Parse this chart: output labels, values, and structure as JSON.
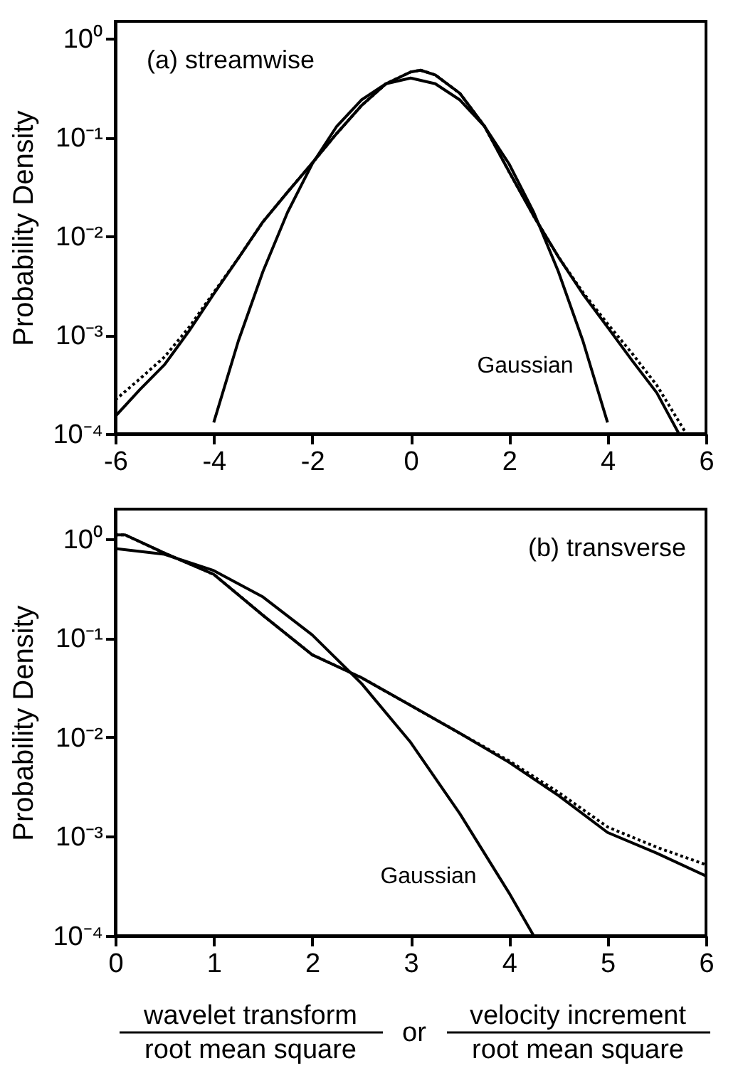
{
  "chart_data": [
    {
      "type": "line",
      "title": "(a)  streamwise",
      "ylabel": "Probability Density",
      "xlim": [
        -6,
        6
      ],
      "xticks": [
        -6,
        -4,
        -2,
        0,
        2,
        4,
        6
      ],
      "ylim": [
        0.0001,
        1.5
      ],
      "log": true,
      "yticks": [
        {
          "value": 0.0001,
          "label": "10⁻⁴"
        },
        {
          "value": 0.001,
          "label": "10⁻³"
        },
        {
          "value": 0.01,
          "label": "10⁻²"
        },
        {
          "value": 0.1,
          "label": "10⁻¹"
        },
        {
          "value": 1,
          "label": "10⁰"
        }
      ],
      "grid": false,
      "annotations": [
        "Gaussian"
      ],
      "series": [
        {
          "color": "#000000",
          "line_style": "solid",
          "x": [
            -6,
            -5.5,
            -5,
            -4.5,
            -4,
            -3.5,
            -3,
            -2.5,
            -2,
            -1.5,
            -1,
            -0.5,
            0,
            0.2,
            0.5,
            1,
            1.5,
            2,
            2.5,
            3,
            3.5,
            4,
            4.5,
            5,
            5.45
          ],
          "values": [
            0.00015,
            0.00028,
            0.0005,
            0.0011,
            0.0026,
            0.006,
            0.014,
            0.028,
            0.055,
            0.11,
            0.21,
            0.35,
            0.46,
            0.48,
            0.43,
            0.28,
            0.13,
            0.045,
            0.016,
            0.0062,
            0.0026,
            0.0012,
            0.00055,
            0.00026,
            0.0001
          ]
        },
        {
          "color": "#000000",
          "line_style": "dotted",
          "x": [
            -6,
            -5.5,
            -5,
            -4.5,
            -4,
            -3.5,
            -3,
            -2.5,
            -2,
            -1.5,
            -1,
            -0.5,
            0,
            0.2,
            0.5,
            1,
            1.5,
            2,
            2.5,
            3,
            3.5,
            4,
            4.5,
            5,
            5.6
          ],
          "values": [
            0.00022,
            0.00036,
            0.0006,
            0.0012,
            0.0027,
            0.006,
            0.014,
            0.028,
            0.055,
            0.11,
            0.21,
            0.35,
            0.46,
            0.48,
            0.43,
            0.28,
            0.13,
            0.045,
            0.016,
            0.0062,
            0.0027,
            0.0013,
            0.00065,
            0.00031,
            0.0001
          ]
        },
        {
          "color": "#000000",
          "line_style": "solid",
          "x": [
            -4,
            -3.5,
            -3,
            -2.5,
            -2,
            -1.5,
            -1,
            -0.5,
            0,
            0.5,
            1,
            1.5,
            2,
            2.5,
            3,
            3.5,
            4
          ],
          "values": [
            0.00013,
            0.00087,
            0.0044,
            0.0175,
            0.054,
            0.13,
            0.24,
            0.35,
            0.4,
            0.35,
            0.24,
            0.13,
            0.054,
            0.0175,
            0.0044,
            0.00087,
            0.00013
          ]
        }
      ]
    },
    {
      "type": "line",
      "title": "(b)  transverse",
      "ylabel": "Probability Density",
      "xlim": [
        0,
        6
      ],
      "xticks": [
        0,
        1,
        2,
        3,
        4,
        5,
        6
      ],
      "ylim": [
        0.0001,
        2
      ],
      "log": true,
      "yticks": [
        {
          "value": 0.0001,
          "label": "10⁻⁴"
        },
        {
          "value": 0.001,
          "label": "10⁻³"
        },
        {
          "value": 0.01,
          "label": "10⁻²"
        },
        {
          "value": 0.1,
          "label": "10⁻¹"
        },
        {
          "value": 1,
          "label": "10⁰"
        }
      ],
      "grid": false,
      "annotations": [
        "Gaussian",
        "wavelet transform",
        "root mean square",
        "or",
        "velocity increment",
        "root mean square"
      ],
      "series": [
        {
          "color": "#000000",
          "line_style": "solid",
          "x": [
            0,
            0.1,
            0.5,
            1,
            1.5,
            2,
            2.5,
            3,
            3.5,
            4,
            4.5,
            5,
            5.5,
            6
          ],
          "values": [
            1.1,
            1.1,
            0.72,
            0.44,
            0.17,
            0.068,
            0.04,
            0.021,
            0.011,
            0.0056,
            0.0026,
            0.0011,
            0.00068,
            0.0004
          ]
        },
        {
          "color": "#000000",
          "line_style": "dotted",
          "x": [
            0,
            0.1,
            0.5,
            1,
            1.5,
            2,
            2.5,
            3,
            3.5,
            4,
            4.5,
            5,
            5.5,
            6
          ],
          "values": [
            1.1,
            1.1,
            0.72,
            0.44,
            0.17,
            0.068,
            0.04,
            0.021,
            0.011,
            0.0058,
            0.0028,
            0.00125,
            0.00078,
            0.00052
          ]
        },
        {
          "color": "#000000",
          "line_style": "solid",
          "x": [
            0,
            0.5,
            1,
            1.5,
            2,
            2.5,
            3,
            3.5,
            4,
            4.25
          ],
          "values": [
            0.8,
            0.7,
            0.48,
            0.26,
            0.108,
            0.035,
            0.0089,
            0.0017,
            0.00027,
            0.0001
          ]
        }
      ]
    }
  ]
}
